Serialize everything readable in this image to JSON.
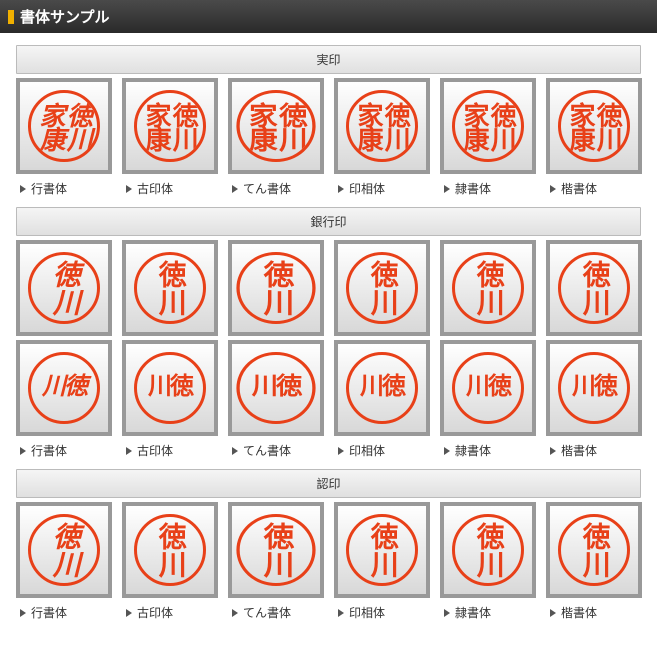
{
  "title": "書体サンプル",
  "stamp_color": "#e84018",
  "border_color": "#999999",
  "box_bg_top": "#ffffff",
  "box_bg_bottom": "#d8d8d8",
  "fonts": [
    "行書体",
    "古印体",
    "てん書体",
    "印相体",
    "隷書体",
    "楷書体"
  ],
  "sections": [
    {
      "title": "実印",
      "rows": [
        {
          "text": "徳川家康",
          "layout": "vert4",
          "show_labels": true
        }
      ]
    },
    {
      "title": "銀行印",
      "rows": [
        {
          "text": "徳川",
          "layout": "vert2",
          "show_labels": false
        },
        {
          "text": "徳川",
          "layout": "horz2",
          "show_labels": true
        }
      ]
    },
    {
      "title": "認印",
      "rows": [
        {
          "text": "徳川",
          "layout": "vert2",
          "show_labels": true
        }
      ]
    }
  ]
}
